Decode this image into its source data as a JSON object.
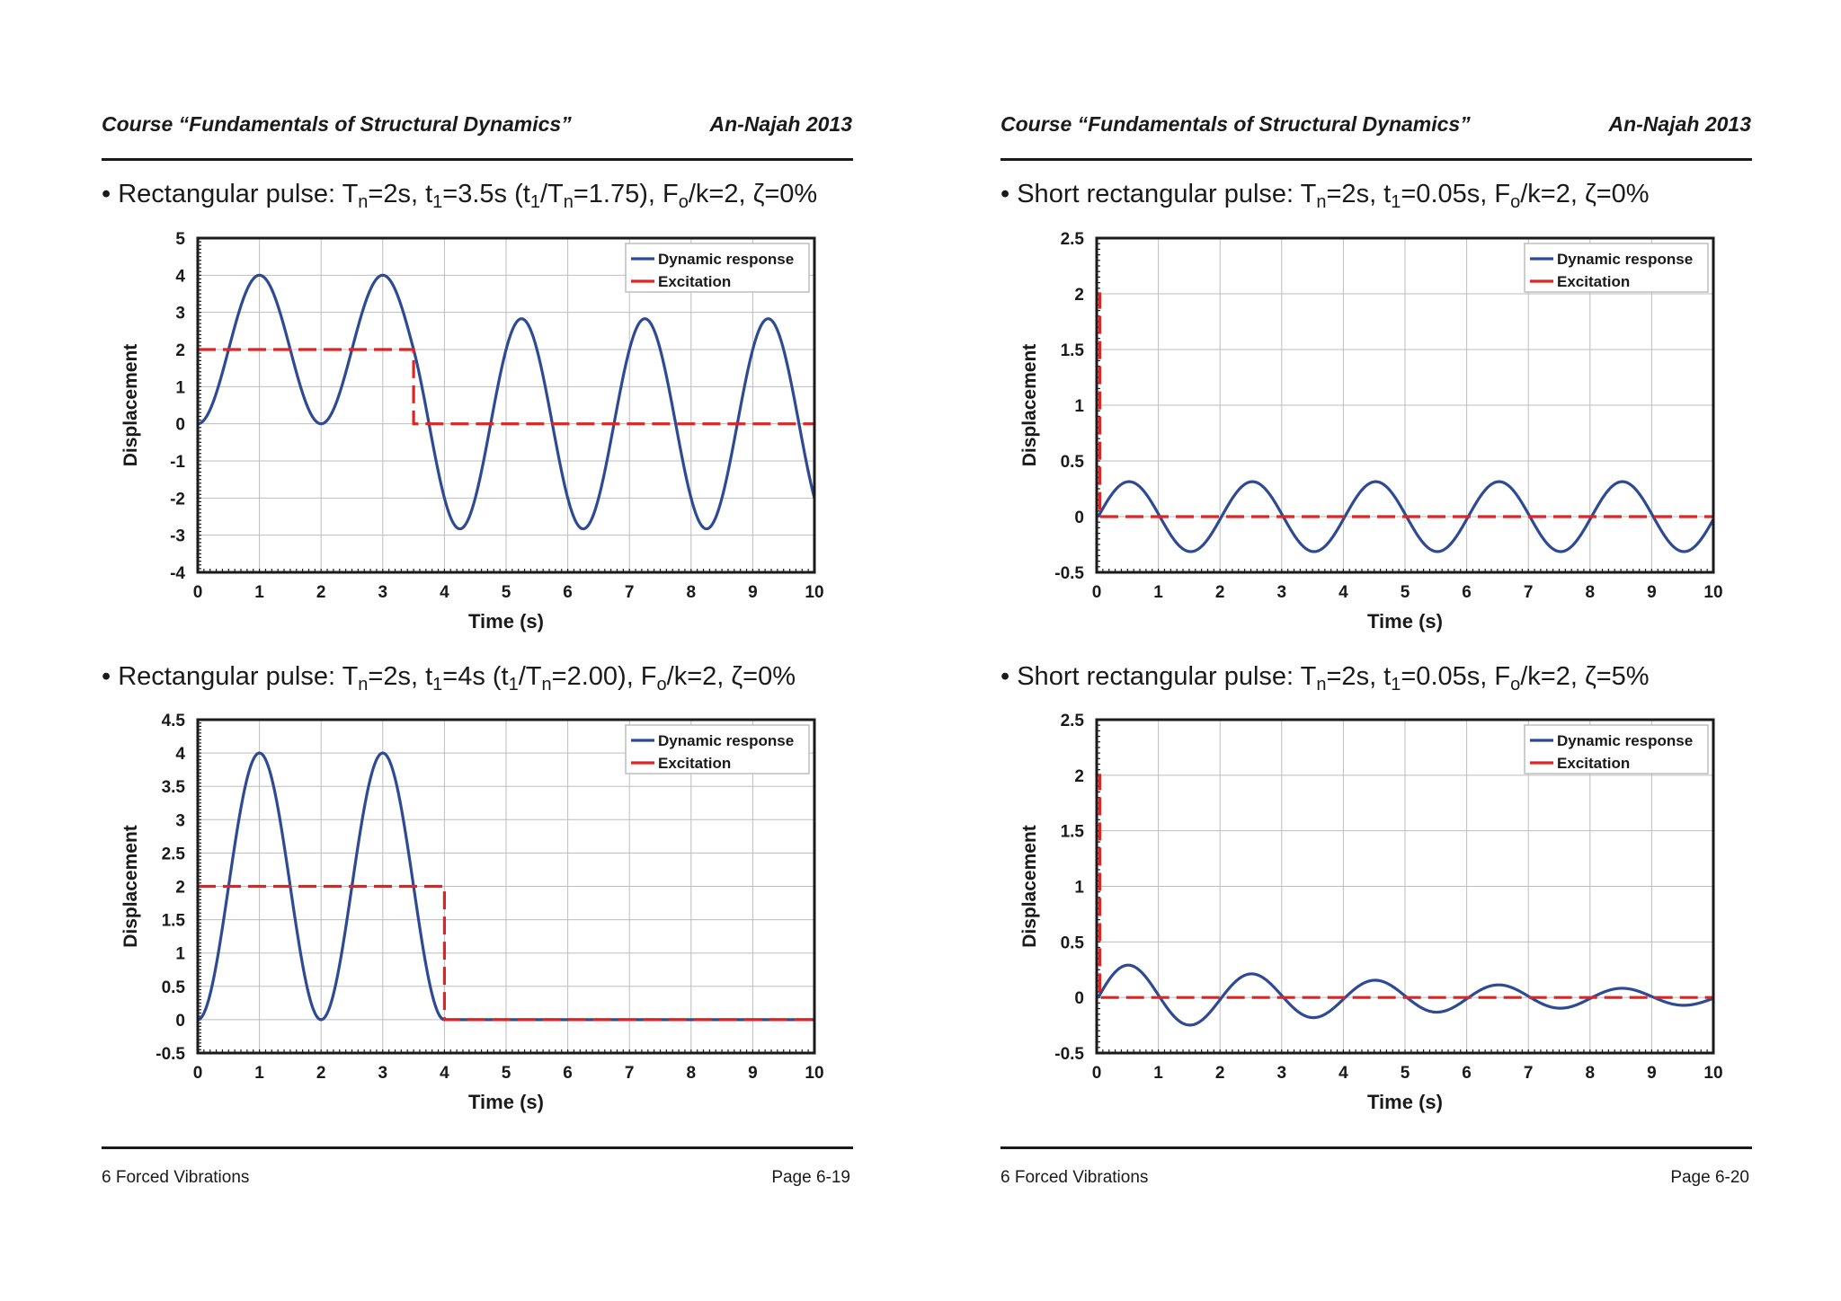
{
  "pages": [
    {
      "header_course": "Course “Fundamentals of Structural Dynamics”",
      "header_org": "An-Najah 2013",
      "footer_chapter": "6 Forced Vibrations",
      "footer_page": "Page 6-19",
      "sections": [
        {
          "bullet": [
            "Rectangular pulse: T",
            "n",
            "=2s, t",
            "1",
            "=3.5s (t",
            "1",
            "/T",
            "n",
            "=1.75), F",
            "o",
            "/k=2, ζ=0%"
          ],
          "chart_data": {
            "type": "line",
            "xlabel": "Time (s)",
            "ylabel": "Displacement",
            "xlim": [
              0,
              10
            ],
            "ylim": [
              -4,
              5
            ],
            "xticks": [
              0,
              1,
              2,
              3,
              4,
              5,
              6,
              7,
              8,
              9,
              10
            ],
            "yticks": [
              -4,
              -3,
              -2,
              -1,
              0,
              1,
              2,
              3,
              4,
              5
            ],
            "grid": true,
            "legend_position": "top-right",
            "series": [
              {
                "name": "Dynamic response",
                "color": "#2e4a94",
                "style": "solid",
                "model": {
                  "Tn": 2,
                  "t1": 3.5,
                  "Fo_over_k": 2,
                  "zeta": 0
                }
              },
              {
                "name": "Excitation",
                "color": "#e02424",
                "style": "dashed",
                "x": [
                  0,
                  3.5,
                  3.5,
                  10
                ],
                "y": [
                  2,
                  2,
                  0,
                  0
                ]
              }
            ]
          }
        },
        {
          "bullet": [
            "Rectangular pulse: T",
            "n",
            "=2s, t",
            "1",
            "=4s (t",
            "1",
            "/T",
            "n",
            "=2.00), F",
            "o",
            "/k=2, ζ=0%"
          ],
          "chart_data": {
            "type": "line",
            "xlabel": "Time (s)",
            "ylabel": "Displacement",
            "xlim": [
              0,
              10
            ],
            "ylim": [
              -0.5,
              4.5
            ],
            "xticks": [
              0,
              1,
              2,
              3,
              4,
              5,
              6,
              7,
              8,
              9,
              10
            ],
            "yticks": [
              -0.5,
              0,
              0.5,
              1,
              1.5,
              2,
              2.5,
              3,
              3.5,
              4,
              4.5
            ],
            "grid": true,
            "legend_position": "top-right",
            "series": [
              {
                "name": "Dynamic response",
                "color": "#2e4a94",
                "style": "solid",
                "model": {
                  "Tn": 2,
                  "t1": 4,
                  "Fo_over_k": 2,
                  "zeta": 0
                }
              },
              {
                "name": "Excitation",
                "color": "#e02424",
                "style": "dashed",
                "x": [
                  0,
                  4,
                  4,
                  10
                ],
                "y": [
                  2,
                  2,
                  0,
                  0
                ]
              }
            ]
          }
        }
      ]
    },
    {
      "header_course": "Course “Fundamentals of Structural Dynamics”",
      "header_org": "An-Najah 2013",
      "footer_chapter": "6 Forced Vibrations",
      "footer_page": "Page 6-20",
      "sections": [
        {
          "bullet": [
            "Short rectangular pulse: T",
            "n",
            "=2s, t",
            "1",
            "=0.05s, F",
            "o",
            "/k=2, ζ=0%"
          ],
          "chart_data": {
            "type": "line",
            "xlabel": "Time (s)",
            "ylabel": "Displacement",
            "xlim": [
              0,
              10
            ],
            "ylim": [
              -0.5,
              2.5
            ],
            "xticks": [
              0,
              1,
              2,
              3,
              4,
              5,
              6,
              7,
              8,
              9,
              10
            ],
            "yticks": [
              -0.5,
              0,
              0.5,
              1,
              1.5,
              2,
              2.5
            ],
            "grid": true,
            "legend_position": "top-right",
            "series": [
              {
                "name": "Dynamic response",
                "color": "#2e4a94",
                "style": "solid",
                "model": {
                  "Tn": 2,
                  "t1": 0.05,
                  "Fo_over_k": 2,
                  "zeta": 0
                }
              },
              {
                "name": "Excitation",
                "color": "#e02424",
                "style": "dashed",
                "x": [
                  0,
                  0.05,
                  0.05,
                  10
                ],
                "y": [
                  2,
                  2,
                  0,
                  0
                ]
              }
            ]
          }
        },
        {
          "bullet": [
            "Short rectangular pulse: T",
            "n",
            "=2s, t",
            "1",
            "=0.05s, F",
            "o",
            "/k=2, ζ=5%"
          ],
          "chart_data": {
            "type": "line",
            "xlabel": "Time (s)",
            "ylabel": "Displacement",
            "xlim": [
              0,
              10
            ],
            "ylim": [
              -0.5,
              2.5
            ],
            "xticks": [
              0,
              1,
              2,
              3,
              4,
              5,
              6,
              7,
              8,
              9,
              10
            ],
            "yticks": [
              -0.5,
              0,
              0.5,
              1,
              1.5,
              2,
              2.5
            ],
            "grid": true,
            "legend_position": "top-right",
            "series": [
              {
                "name": "Dynamic response",
                "color": "#2e4a94",
                "style": "solid",
                "model": {
                  "Tn": 2,
                  "t1": 0.05,
                  "Fo_over_k": 2,
                  "zeta": 0.05
                }
              },
              {
                "name": "Excitation",
                "color": "#e02424",
                "style": "dashed",
                "x": [
                  0,
                  0.05,
                  0.05,
                  10
                ],
                "y": [
                  2,
                  2,
                  0,
                  0
                ]
              }
            ]
          }
        }
      ]
    }
  ]
}
